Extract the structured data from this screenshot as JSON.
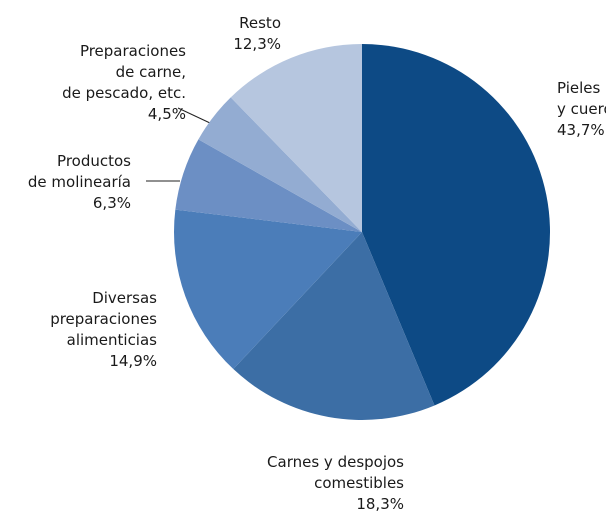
{
  "chart_data": {
    "type": "pie",
    "categories": [
      "Pieles\ny cueros",
      "Carnes y despojos\ncomestibles",
      "Diversas\npreparaciones\nalimenticias",
      "Productos\nde molinearía",
      "Preparaciones\nde carne,\nde pescado, etc.",
      "Resto"
    ],
    "values": [
      43.7,
      18.3,
      14.9,
      6.3,
      4.5,
      12.3
    ],
    "value_labels": [
      "43,7%",
      "18,3%",
      "14,9%",
      "6,3%",
      "4,5%",
      "12,3%"
    ],
    "colors": [
      "#0d4a85",
      "#3c6ea5",
      "#4b7db9",
      "#6c8fc4",
      "#93acd2",
      "#b6c6df"
    ]
  }
}
